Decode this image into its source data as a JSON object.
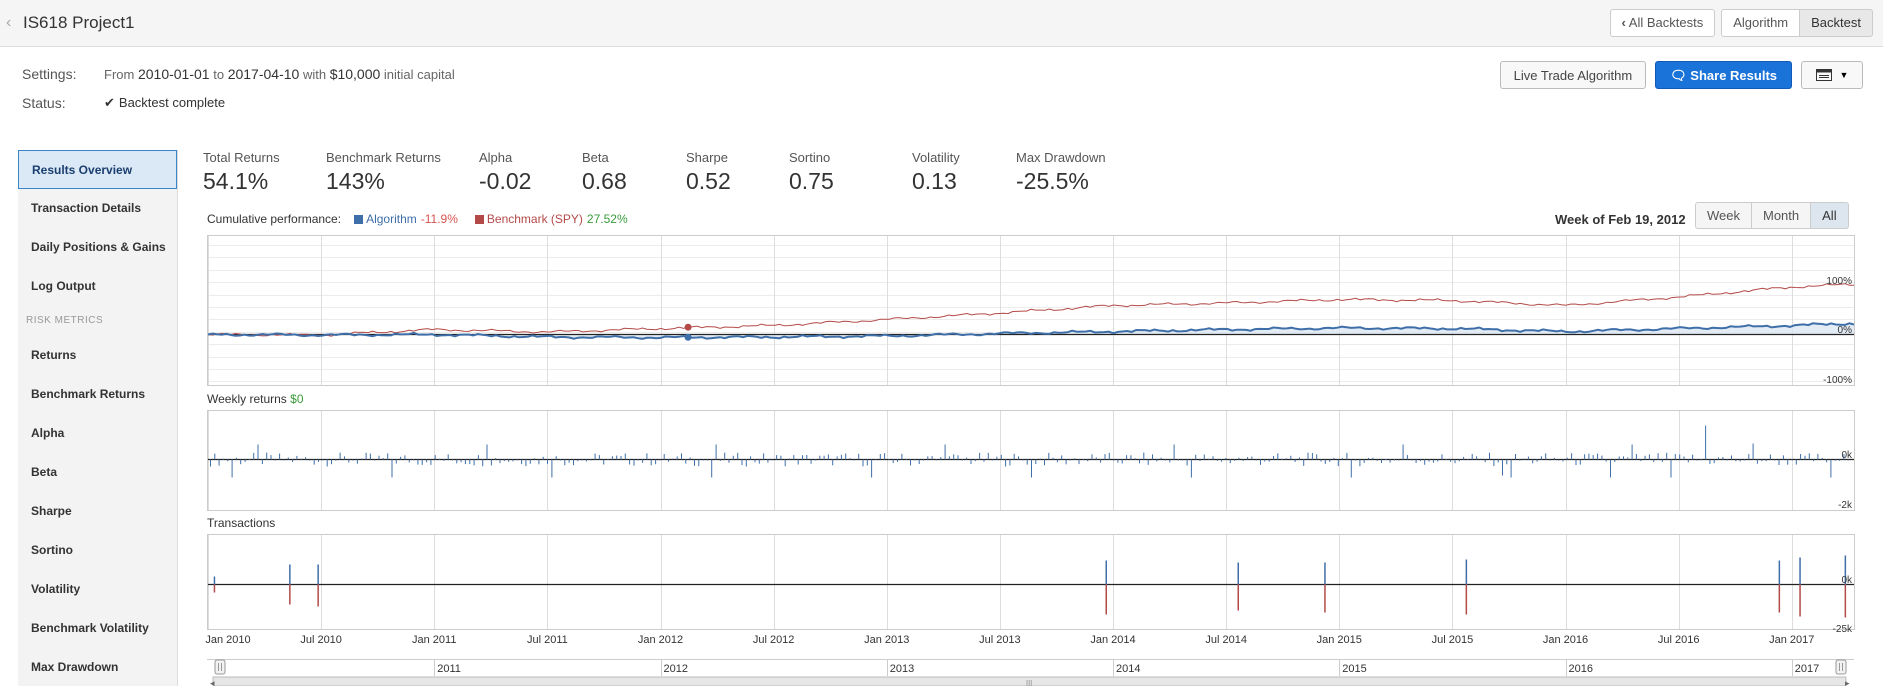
{
  "header": {
    "project_title": "IS618 Project1",
    "buttons": {
      "all_backtests": "All Backtests",
      "algorithm": "Algorithm",
      "backtest": "Backtest"
    }
  },
  "settings": {
    "settings_label": "Settings:",
    "from_word": "From",
    "start_date": "2010-01-01",
    "to_word": "to",
    "end_date": "2017-04-10",
    "with_word": "with",
    "capital": "$10,000",
    "capital_suffix": "initial capital",
    "status_label": "Status:",
    "status_text": "Backtest complete"
  },
  "actions": {
    "live_trade": "Live Trade Algorithm",
    "share": "Share Results"
  },
  "sidebar": {
    "items": [
      {
        "label": "Results Overview",
        "active": true
      },
      {
        "label": "Transaction Details"
      },
      {
        "label": "Daily Positions & Gains"
      },
      {
        "label": "Log Output"
      }
    ],
    "section_heading": "RISK METRICS",
    "metrics": [
      {
        "label": "Returns"
      },
      {
        "label": "Benchmark Returns"
      },
      {
        "label": "Alpha"
      },
      {
        "label": "Beta"
      },
      {
        "label": "Sharpe"
      },
      {
        "label": "Sortino"
      },
      {
        "label": "Volatility"
      },
      {
        "label": "Benchmark Volatility"
      },
      {
        "label": "Max Drawdown"
      }
    ]
  },
  "stats": [
    {
      "label": "Total Returns",
      "value": "54.1%"
    },
    {
      "label": "Benchmark Returns",
      "value": "143%"
    },
    {
      "label": "Alpha",
      "value": "-0.02"
    },
    {
      "label": "Beta",
      "value": "0.68"
    },
    {
      "label": "Sharpe",
      "value": "0.52"
    },
    {
      "label": "Sortino",
      "value": "0.75"
    },
    {
      "label": "Volatility",
      "value": "0.13"
    },
    {
      "label": "Max Drawdown",
      "value": "-25.5%"
    }
  ],
  "cumulative": {
    "title": "Cumulative performance:",
    "algorithm_label": "Algorithm",
    "algorithm_value": "-11.9%",
    "benchmark_label": "Benchmark (SPY)",
    "benchmark_value": "27.52%",
    "week_of": "Week of Feb 19, 2012",
    "range_buttons": [
      "Week",
      "Month",
      "All"
    ],
    "selected_range": "All",
    "y_ticks": [
      "100%",
      "0%",
      "-100%"
    ]
  },
  "weekly": {
    "title": "Weekly returns",
    "value": "$0",
    "y_ticks": [
      "0k",
      "-2k"
    ]
  },
  "transactions": {
    "title": "Transactions",
    "y_ticks": [
      "0k",
      "-25k"
    ]
  },
  "x_axis": {
    "ticks": [
      "Jan 2010",
      "Jul 2010",
      "Jan 2011",
      "Jul 2011",
      "Jan 2012",
      "Jul 2012",
      "Jan 2013",
      "Jul 2013",
      "Jan 2014",
      "Jul 2014",
      "Jan 2015",
      "Jul 2015",
      "Jan 2016",
      "Jul 2016",
      "Jan 2017"
    ]
  },
  "navigator": {
    "years": [
      "2011",
      "2012",
      "2013",
      "2014",
      "2015",
      "2016",
      "2017"
    ]
  },
  "colors": {
    "algorithm": "#3f6fa8",
    "benchmark": "#b34a48",
    "positive": "#3a9a3a",
    "negative": "#d9534f",
    "share_button": "#1a73d9"
  },
  "chart_data": {
    "type": "line",
    "title": "Cumulative performance",
    "x": [
      "2010-01",
      "2010-07",
      "2011-01",
      "2011-07",
      "2012-01",
      "2012-07",
      "2013-01",
      "2013-07",
      "2014-01",
      "2014-07",
      "2015-01",
      "2015-07",
      "2016-01",
      "2016-07",
      "2017-01",
      "2017-04"
    ],
    "series": [
      {
        "name": "Algorithm",
        "values": [
          0,
          -1,
          0,
          -5,
          -6,
          -5,
          -3,
          2,
          6,
          10,
          13,
          12,
          6,
          12,
          18,
          22
        ]
      },
      {
        "name": "Benchmark (SPY)",
        "values": [
          0,
          -1,
          10,
          5,
          12,
          18,
          30,
          43,
          58,
          63,
          70,
          68,
          58,
          75,
          95,
          100
        ]
      }
    ],
    "ylim": [
      -100,
      100
    ],
    "grid": true
  }
}
